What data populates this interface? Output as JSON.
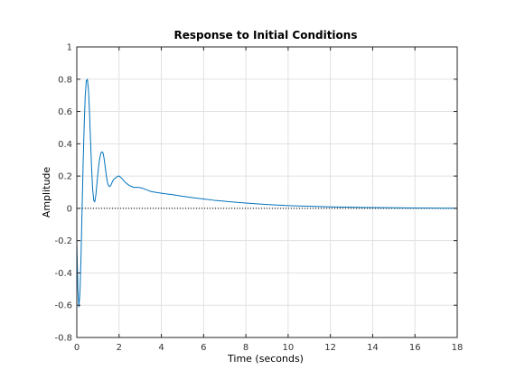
{
  "window": {
    "title": "Response to Initial Conditions"
  },
  "chart_data": {
    "type": "line",
    "title": "Response to Initial Conditions",
    "xlabel": "Time (seconds)",
    "ylabel": "Amplitude",
    "xlim": [
      0,
      18
    ],
    "ylim": [
      -0.8,
      1
    ],
    "xticks": [
      0,
      2,
      4,
      6,
      8,
      10,
      12,
      14,
      16,
      18
    ],
    "yticks": [
      -0.8,
      -0.6,
      -0.4,
      -0.2,
      0,
      0.2,
      0.4,
      0.6,
      0.8,
      1
    ],
    "xtick_labels": [
      "0",
      "2",
      "4",
      "6",
      "8",
      "10",
      "12",
      "14",
      "16",
      "18"
    ],
    "ytick_labels": [
      "-0.8",
      "-0.6",
      "-0.4",
      "-0.2",
      "0",
      "0.2",
      "0.4",
      "0.6",
      "0.8",
      "1"
    ],
    "grid": true,
    "zero_line": true,
    "series": [
      {
        "color": "#0072bd",
        "x": [
          0,
          0.05,
          0.1,
          0.15,
          0.2,
          0.25,
          0.3,
          0.35,
          0.4,
          0.45,
          0.5,
          0.55,
          0.6,
          0.65,
          0.7,
          0.75,
          0.8,
          0.85,
          0.9,
          0.95,
          1.0,
          1.05,
          1.1,
          1.15,
          1.2,
          1.25,
          1.3,
          1.35,
          1.4,
          1.45,
          1.5,
          1.55,
          1.6,
          1.65,
          1.7,
          1.75,
          1.8,
          1.85,
          1.9,
          1.95,
          2.0,
          2.1,
          2.2,
          2.3,
          2.4,
          2.5,
          2.6,
          2.7,
          2.8,
          2.9,
          3.0,
          3.1,
          3.2,
          3.3,
          3.4,
          3.5,
          3.6,
          3.7,
          3.8,
          3.9,
          4.0,
          4.2,
          4.5,
          5.0,
          5.5,
          6.0,
          6.5,
          7.0,
          7.5,
          8.0,
          8.5,
          9.0,
          9.5,
          10.0,
          10.5,
          11.0,
          11.5,
          12.0,
          12.5,
          13.0,
          13.5,
          14.0,
          14.5,
          15.0,
          15.5,
          16.0,
          16.5,
          17.0,
          17.5,
          18.0
        ],
        "y": [
          -0.2,
          -0.5,
          -0.61,
          -0.52,
          -0.3,
          0.0,
          0.28,
          0.52,
          0.7,
          0.79,
          0.8,
          0.74,
          0.6,
          0.42,
          0.25,
          0.12,
          0.05,
          0.04,
          0.08,
          0.15,
          0.22,
          0.28,
          0.32,
          0.345,
          0.35,
          0.34,
          0.3,
          0.25,
          0.2,
          0.16,
          0.14,
          0.135,
          0.14,
          0.155,
          0.17,
          0.18,
          0.185,
          0.19,
          0.195,
          0.2,
          0.2,
          0.19,
          0.175,
          0.16,
          0.15,
          0.14,
          0.135,
          0.13,
          0.13,
          0.13,
          0.128,
          0.125,
          0.12,
          0.115,
          0.11,
          0.105,
          0.102,
          0.1,
          0.098,
          0.096,
          0.094,
          0.09,
          0.085,
          0.075,
          0.066,
          0.058,
          0.05,
          0.044,
          0.038,
          0.033,
          0.028,
          0.024,
          0.02,
          0.017,
          0.015,
          0.013,
          0.011,
          0.009,
          0.008,
          0.007,
          0.006,
          0.005,
          0.004,
          0.0035,
          0.003,
          0.0025,
          0.002,
          0.0015,
          0.001,
          0.001
        ]
      }
    ]
  }
}
